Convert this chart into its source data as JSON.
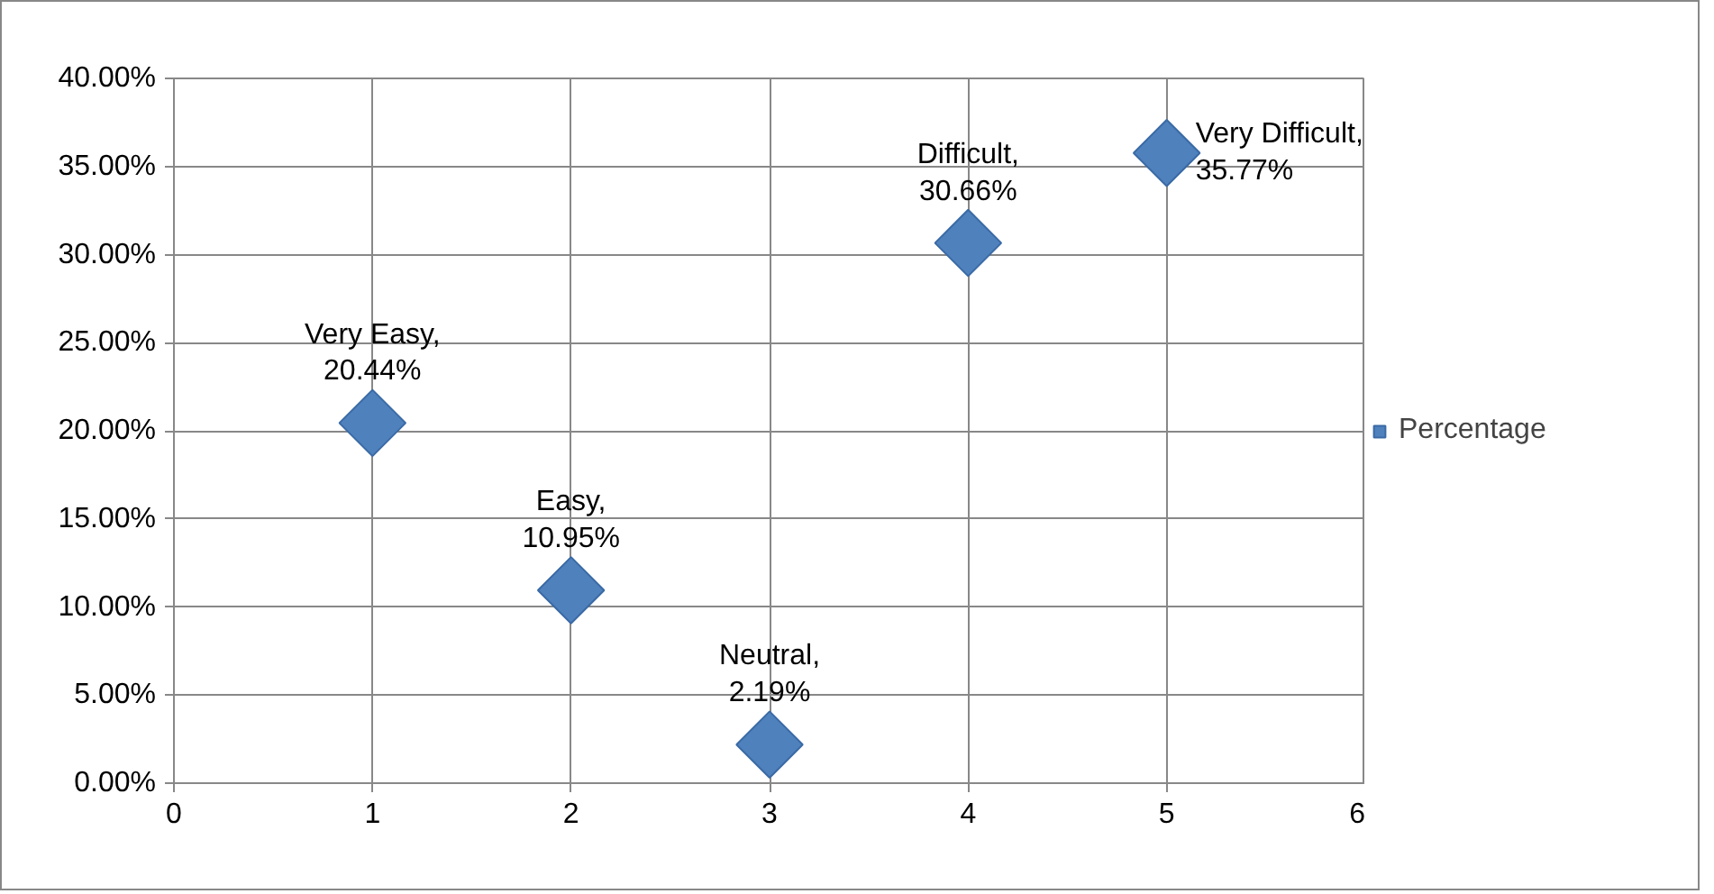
{
  "chart_data": {
    "type": "scatter",
    "x": [
      1,
      2,
      3,
      4,
      5
    ],
    "series": [
      {
        "name": "Percentage",
        "color": "#4f81bd",
        "values": [
          20.44,
          10.95,
          2.19,
          30.66,
          35.77
        ],
        "value_labels": [
          "Very Easy, 20.44%",
          "Easy, 10.95%",
          "Neutral, 2.19%",
          "Difficult, 30.66%",
          "Very Difficult, 35.77%"
        ]
      }
    ],
    "xlim": [
      0,
      6
    ],
    "xticks": [
      0,
      1,
      2,
      3,
      4,
      5,
      6
    ],
    "ylim": [
      0,
      40
    ],
    "yticks": [
      {
        "value": 0,
        "label": "0.00%"
      },
      {
        "value": 5,
        "label": "5.00%"
      },
      {
        "value": 10,
        "label": "10.00%"
      },
      {
        "value": 15,
        "label": "15.00%"
      },
      {
        "value": 20,
        "label": "20.00%"
      },
      {
        "value": 25,
        "label": "25.00%"
      },
      {
        "value": 30,
        "label": "30.00%"
      },
      {
        "value": 35,
        "label": "35.00%"
      },
      {
        "value": 40,
        "label": "40.00%"
      }
    ],
    "grid": true,
    "legend": "right",
    "marker": "diamond"
  }
}
